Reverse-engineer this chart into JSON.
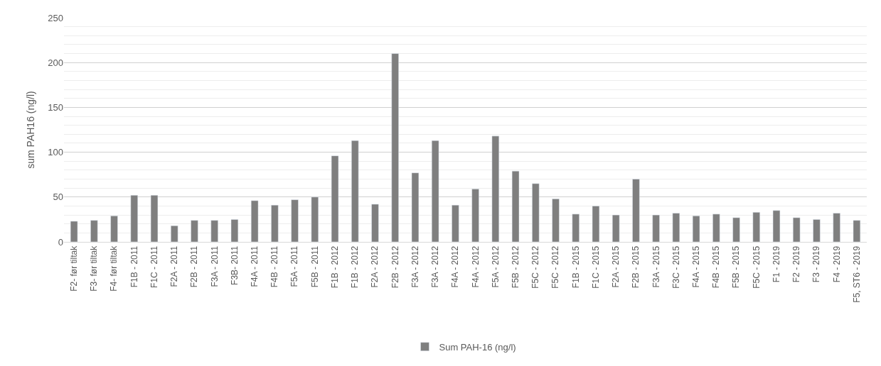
{
  "chart_data": {
    "type": "bar",
    "ylabel": "sum PAH16 (ng/l)",
    "categories": [
      "F2- før tiltak",
      "F3- før tiltak",
      "F4- før tiltak",
      "F1B - 2011",
      "F1C - 2011",
      "F2A - 2011",
      "F2B - 2011",
      "F3A - 2011",
      "F3B- 2011",
      "F4A - 2011",
      "F4B - 2011",
      "F5A - 2011",
      "F5B - 2011",
      "F1B - 2012",
      "F1B - 2012",
      "F2A - 2012",
      "F2B - 2012",
      "F3A - 2012",
      "F3A - 2012",
      "F4A - 2012",
      "F4A - 2012",
      "F5A - 2012",
      "F5B - 2012",
      "F5C - 2012",
      "F5C - 2012",
      "F1B - 2015",
      "F1C - 2015",
      "F2A - 2015",
      "F2B - 2015",
      "F3A - 2015",
      "F3C - 2015",
      "F4A - 2015",
      "F4B - 2015",
      "F5B - 2015",
      "F5C - 2015",
      "F1 - 2019",
      "F2 - 2019",
      "F3 - 2019",
      "F4 - 2019",
      "F5, ST6 - 2019"
    ],
    "series": [
      {
        "name": "Sum PAH-16 (ng/l)",
        "color": "#7f7f7f",
        "values": [
          23,
          24,
          29,
          52,
          52,
          18,
          24,
          24,
          25,
          46,
          41,
          47,
          50,
          96,
          113,
          42,
          210,
          77,
          113,
          41,
          59,
          118,
          79,
          65,
          48,
          31,
          40,
          30,
          70,
          30,
          32,
          29,
          31,
          27,
          33,
          35,
          27,
          25,
          32,
          24
        ]
      }
    ],
    "ylim": [
      0,
      250
    ],
    "yticks": [
      0,
      50,
      100,
      150,
      200,
      250
    ],
    "grid": "y",
    "legend": "bottom"
  }
}
